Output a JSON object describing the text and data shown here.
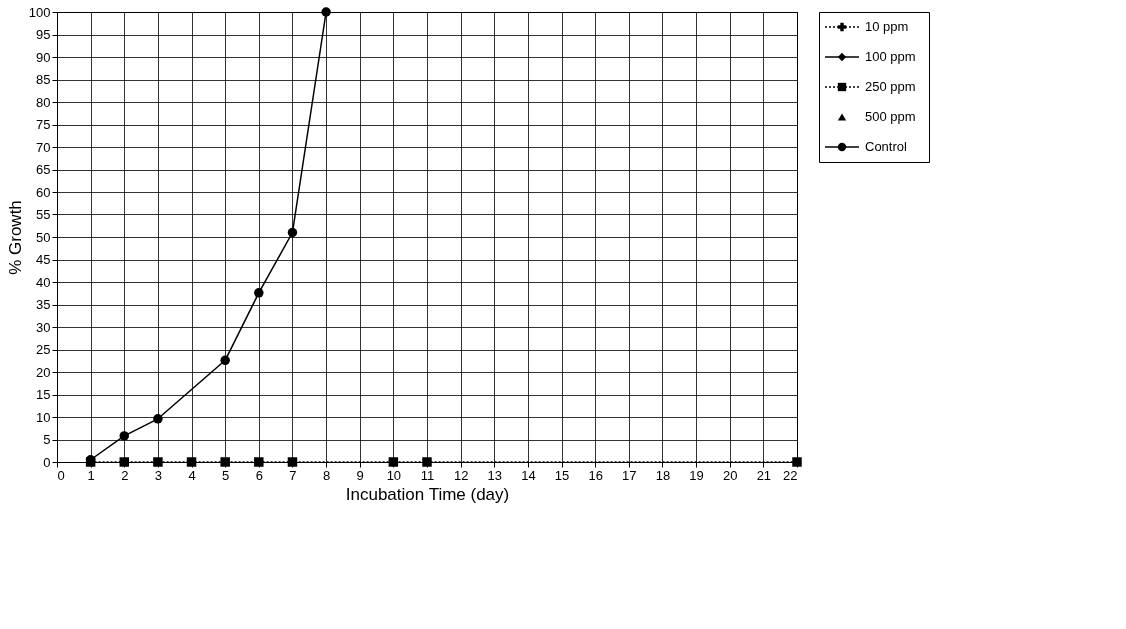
{
  "chart_data": {
    "type": "line",
    "xlabel": "Incubation Time (day)",
    "ylabel": "% Growth",
    "x": [
      1,
      2,
      3,
      4,
      5,
      6,
      7,
      8,
      10,
      11,
      22
    ],
    "series": [
      {
        "name": "10 ppm",
        "color": "#000000",
        "marker": "cross",
        "line_style": "dotted",
        "values": [
          null,
          null,
          null,
          null,
          null,
          null,
          null,
          null,
          null,
          null,
          null
        ]
      },
      {
        "name": "100 ppm",
        "color": "#000000",
        "marker": "diamond",
        "line_style": "solid",
        "values": [
          null,
          null,
          null,
          null,
          null,
          null,
          null,
          null,
          null,
          null,
          null
        ]
      },
      {
        "name": "250 ppm",
        "color": "#000000",
        "marker": "square",
        "line_style": "dotted",
        "values": [
          0,
          0,
          0,
          0,
          0,
          0,
          0,
          null,
          0,
          0,
          0
        ]
      },
      {
        "name": "500 ppm",
        "color": "#000000",
        "marker": "triangle",
        "line_style": "none",
        "values": [
          null,
          null,
          null,
          null,
          null,
          null,
          null,
          null,
          null,
          null,
          null
        ]
      },
      {
        "name": "Control",
        "color": "#000000",
        "marker": "circle",
        "line_style": "solid",
        "values": [
          0.5,
          5.8,
          9.6,
          null,
          22.6,
          37.6,
          51,
          100,
          null,
          null,
          null
        ]
      }
    ],
    "xlim": [
      0,
      22
    ],
    "xticks": [
      0,
      1,
      2,
      3,
      4,
      5,
      6,
      7,
      8,
      9,
      10,
      11,
      12,
      13,
      14,
      15,
      16,
      17,
      18,
      19,
      20,
      21,
      22
    ],
    "ylim": [
      0,
      100
    ],
    "yticks": [
      0,
      5,
      10,
      15,
      20,
      25,
      30,
      35,
      40,
      45,
      50,
      55,
      60,
      65,
      70,
      75,
      80,
      85,
      90,
      95,
      100
    ],
    "grid": true,
    "legend": "right"
  }
}
